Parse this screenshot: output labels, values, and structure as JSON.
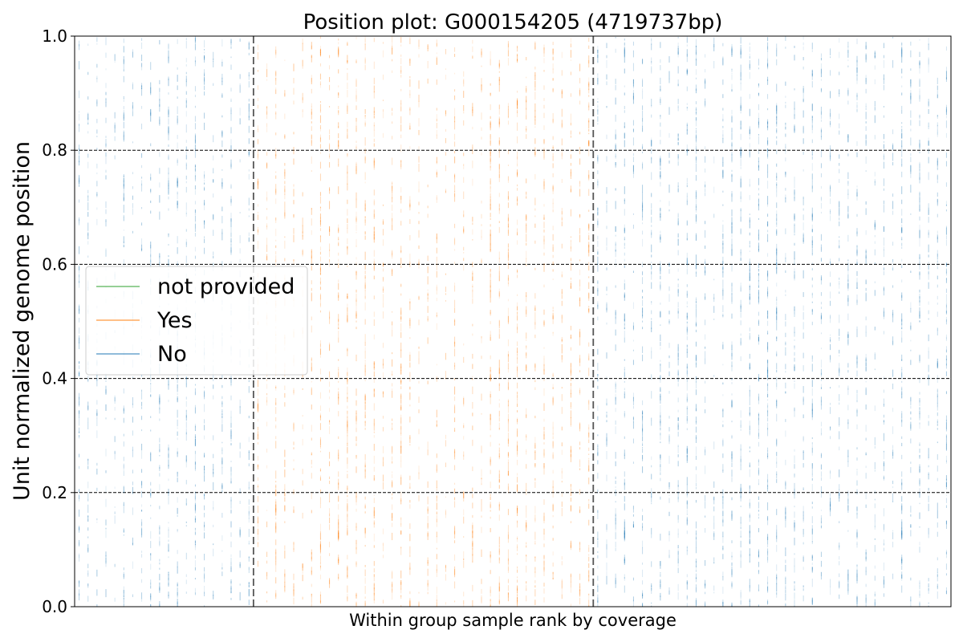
{
  "chart_data": {
    "type": "line",
    "title": "Position plot: G000154205 (4719737bp)",
    "xlabel": "Within group sample rank by coverage",
    "ylabel": "Unit normalized genome position",
    "ylim": [
      0,
      1
    ],
    "y_ticks": [
      "0.0",
      "0.2",
      "0.4",
      "0.6",
      "0.8",
      "1.0"
    ],
    "y_tick_values": [
      0,
      0.2,
      0.4,
      0.6,
      0.8,
      1.0
    ],
    "grid": "horizontal dashed",
    "legend_position": "center-left",
    "groups": [
      {
        "name": "No",
        "sample_count": 20,
        "color": "#1f77b4"
      },
      {
        "name": "Yes",
        "sample_count": 38,
        "color": "#ff7f0e"
      },
      {
        "name": "No",
        "sample_count": 40,
        "color": "#1f77b4"
      }
    ],
    "series": [
      {
        "name": "not provided",
        "color": "#2ca02c"
      },
      {
        "name": "Yes",
        "color": "#ff7f0e"
      },
      {
        "name": "No",
        "color": "#1f77b4"
      }
    ]
  }
}
